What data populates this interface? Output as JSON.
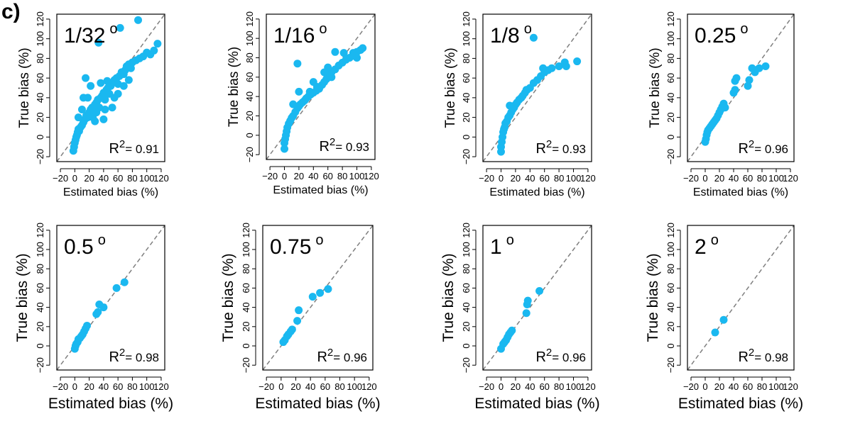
{
  "figure_label": "c)",
  "style": {
    "point_color": "#1ab8f0",
    "diagonal_color": "#7f7f7f"
  },
  "chart_data": [
    {
      "type": "scatter",
      "resolution_label": "1/32",
      "degree_symbol": "o",
      "r2_prefix": "R",
      "r2_sup": "2",
      "r2_value": "= 0.91",
      "xlabel": "Estimated bias (%)",
      "ylabel": "True  bias (%)",
      "xlim": [
        -25,
        125
      ],
      "ylim": [
        -25,
        125
      ],
      "xticks": [
        -20,
        0,
        20,
        40,
        60,
        80,
        100,
        120
      ],
      "yticks": [
        -20,
        0,
        20,
        40,
        60,
        80,
        100,
        120
      ],
      "reference_line": "1:1",
      "points": [
        [
          -2,
          -14
        ],
        [
          -1,
          -10
        ],
        [
          0,
          -6
        ],
        [
          1,
          -3
        ],
        [
          2,
          0
        ],
        [
          3,
          2
        ],
        [
          4,
          5
        ],
        [
          5,
          8
        ],
        [
          6,
          6
        ],
        [
          8,
          10
        ],
        [
          10,
          12
        ],
        [
          12,
          15
        ],
        [
          14,
          18
        ],
        [
          16,
          22
        ],
        [
          18,
          20
        ],
        [
          20,
          25
        ],
        [
          22,
          28
        ],
        [
          24,
          30
        ],
        [
          26,
          26
        ],
        [
          28,
          33
        ],
        [
          30,
          35
        ],
        [
          32,
          38
        ],
        [
          34,
          30
        ],
        [
          36,
          40
        ],
        [
          38,
          42
        ],
        [
          40,
          45
        ],
        [
          42,
          38
        ],
        [
          44,
          48
        ],
        [
          46,
          50
        ],
        [
          48,
          44
        ],
        [
          50,
          52
        ],
        [
          52,
          55
        ],
        [
          55,
          58
        ],
        [
          58,
          60
        ],
        [
          60,
          54
        ],
        [
          62,
          62
        ],
        [
          65,
          66
        ],
        [
          68,
          64
        ],
        [
          70,
          68
        ],
        [
          72,
          72
        ],
        [
          75,
          74
        ],
        [
          78,
          70
        ],
        [
          80,
          76
        ],
        [
          85,
          78
        ],
        [
          90,
          80
        ],
        [
          95,
          82
        ],
        [
          100,
          86
        ],
        [
          105,
          84
        ],
        [
          110,
          88
        ],
        [
          115,
          95
        ],
        [
          33,
          96
        ],
        [
          63,
          111
        ],
        [
          88,
          119
        ],
        [
          15,
          60
        ],
        [
          22,
          52
        ],
        [
          36,
          55
        ],
        [
          45,
          57
        ],
        [
          18,
          40
        ],
        [
          28,
          16
        ],
        [
          40,
          18
        ],
        [
          52,
          30
        ],
        [
          10,
          28
        ],
        [
          12,
          40
        ],
        [
          60,
          44
        ],
        [
          5,
          20
        ],
        [
          25,
          20
        ],
        [
          30,
          25
        ],
        [
          42,
          28
        ],
        [
          55,
          40
        ],
        [
          68,
          52
        ],
        [
          75,
          58
        ]
      ]
    },
    {
      "type": "scatter",
      "resolution_label": "1/16",
      "degree_symbol": "o",
      "r2_prefix": "R",
      "r2_sup": "2",
      "r2_value": "= 0.93",
      "xlabel": "Estimated bias (%)",
      "ylabel": "True  bias (%)",
      "xlim": [
        -25,
        125
      ],
      "ylim": [
        -25,
        125
      ],
      "xticks": [
        -20,
        0,
        20,
        40,
        60,
        80,
        100,
        120
      ],
      "yticks": [
        -20,
        0,
        20,
        40,
        60,
        80,
        100,
        120
      ],
      "reference_line": "1:1",
      "points": [
        [
          0,
          -14
        ],
        [
          0,
          -8
        ],
        [
          1,
          -4
        ],
        [
          2,
          0
        ],
        [
          3,
          4
        ],
        [
          4,
          8
        ],
        [
          6,
          12
        ],
        [
          8,
          15
        ],
        [
          10,
          18
        ],
        [
          12,
          20
        ],
        [
          15,
          24
        ],
        [
          18,
          28
        ],
        [
          20,
          30
        ],
        [
          22,
          32
        ],
        [
          25,
          34
        ],
        [
          28,
          36
        ],
        [
          30,
          38
        ],
        [
          33,
          40
        ],
        [
          36,
          42
        ],
        [
          40,
          44
        ],
        [
          44,
          46
        ],
        [
          48,
          48
        ],
        [
          52,
          52
        ],
        [
          55,
          55
        ],
        [
          58,
          58
        ],
        [
          62,
          62
        ],
        [
          65,
          65
        ],
        [
          70,
          68
        ],
        [
          75,
          72
        ],
        [
          80,
          75
        ],
        [
          85,
          78
        ],
        [
          90,
          80
        ],
        [
          95,
          82
        ],
        [
          100,
          86
        ],
        [
          105,
          88
        ],
        [
          108,
          90
        ],
        [
          18,
          74
        ],
        [
          70,
          86
        ],
        [
          20,
          45
        ],
        [
          35,
          45
        ],
        [
          55,
          65
        ],
        [
          40,
          55
        ],
        [
          60,
          70
        ],
        [
          12,
          32
        ],
        [
          45,
          50
        ],
        [
          65,
          60
        ],
        [
          82,
          85
        ],
        [
          95,
          85
        ],
        [
          100,
          80
        ]
      ]
    },
    {
      "type": "scatter",
      "resolution_label": "1/8",
      "degree_symbol": "o",
      "r2_prefix": "R",
      "r2_sup": "2",
      "r2_value": "= 0.93",
      "xlabel": "Estimated bias (%)",
      "ylabel": "True bias (%)",
      "xlim": [
        -25,
        125
      ],
      "ylim": [
        -25,
        125
      ],
      "xticks": [
        -20,
        0,
        20,
        40,
        60,
        80,
        100,
        120
      ],
      "yticks": [
        -20,
        0,
        20,
        40,
        60,
        80,
        100,
        120
      ],
      "reference_line": "1:1",
      "points": [
        [
          0,
          -15
        ],
        [
          0,
          -10
        ],
        [
          1,
          -5
        ],
        [
          2,
          0
        ],
        [
          3,
          5
        ],
        [
          4,
          8
        ],
        [
          5,
          10
        ],
        [
          6,
          14
        ],
        [
          8,
          16
        ],
        [
          10,
          20
        ],
        [
          12,
          22
        ],
        [
          14,
          25
        ],
        [
          16,
          28
        ],
        [
          18,
          30
        ],
        [
          20,
          33
        ],
        [
          22,
          35
        ],
        [
          25,
          38
        ],
        [
          28,
          40
        ],
        [
          30,
          42
        ],
        [
          33,
          45
        ],
        [
          36,
          48
        ],
        [
          40,
          50
        ],
        [
          45,
          55
        ],
        [
          50,
          58
        ],
        [
          55,
          62
        ],
        [
          60,
          66
        ],
        [
          65,
          68
        ],
        [
          70,
          70
        ],
        [
          80,
          72
        ],
        [
          88,
          76
        ],
        [
          90,
          72
        ],
        [
          105,
          77
        ],
        [
          45,
          101
        ],
        [
          12,
          32
        ],
        [
          35,
          48
        ],
        [
          58,
          70
        ]
      ]
    },
    {
      "type": "scatter",
      "resolution_label": "0.25",
      "degree_symbol": "o",
      "r2_prefix": "R",
      "r2_sup": "2",
      "r2_value": "= 0.96",
      "xlabel": "Estimated bias (%)",
      "ylabel": "True bias (%)",
      "xlim": [
        -25,
        125
      ],
      "ylim": [
        -25,
        125
      ],
      "xticks": [
        -20,
        0,
        20,
        40,
        60,
        80,
        100,
        120
      ],
      "yticks": [
        -20,
        0,
        20,
        40,
        60,
        80,
        100,
        120
      ],
      "reference_line": "1:1",
      "points": [
        [
          0,
          -5
        ],
        [
          1,
          -2
        ],
        [
          2,
          2
        ],
        [
          3,
          5
        ],
        [
          4,
          7
        ],
        [
          6,
          9
        ],
        [
          8,
          11
        ],
        [
          10,
          13
        ],
        [
          12,
          15
        ],
        [
          14,
          17
        ],
        [
          16,
          19
        ],
        [
          18,
          22
        ],
        [
          20,
          25
        ],
        [
          22,
          28
        ],
        [
          24,
          31
        ],
        [
          26,
          34
        ],
        [
          28,
          30
        ],
        [
          40,
          45
        ],
        [
          42,
          48
        ],
        [
          42,
          57
        ],
        [
          44,
          60
        ],
        [
          60,
          52
        ],
        [
          62,
          58
        ],
        [
          66,
          70
        ],
        [
          70,
          66
        ],
        [
          76,
          70
        ],
        [
          85,
          72
        ]
      ]
    },
    {
      "type": "scatter",
      "resolution_label": "0.5",
      "degree_symbol": "o",
      "r2_prefix": "R",
      "r2_sup": "2",
      "r2_value": "= 0.98",
      "xlabel": "Estimated bias (%)",
      "ylabel": "True bias (%)",
      "xlim": [
        -25,
        125
      ],
      "ylim": [
        -25,
        125
      ],
      "xticks": [
        -20,
        0,
        20,
        40,
        60,
        80,
        100,
        120
      ],
      "yticks": [
        -20,
        0,
        20,
        40,
        60,
        80,
        100,
        120
      ],
      "reference_line": "1:1",
      "points": [
        [
          0,
          -3
        ],
        [
          1,
          0
        ],
        [
          2,
          2
        ],
        [
          4,
          4
        ],
        [
          5,
          7
        ],
        [
          7,
          8
        ],
        [
          9,
          10
        ],
        [
          11,
          12
        ],
        [
          13,
          15
        ],
        [
          15,
          18
        ],
        [
          17,
          21
        ],
        [
          30,
          33
        ],
        [
          32,
          35
        ],
        [
          34,
          43
        ],
        [
          40,
          40
        ],
        [
          58,
          60
        ],
        [
          69,
          66
        ]
      ]
    },
    {
      "type": "scatter",
      "resolution_label": "0.75",
      "degree_symbol": "o",
      "r2_prefix": "R",
      "r2_sup": "2",
      "r2_value": "= 0.96",
      "xlabel": "Estimated bias (%)",
      "ylabel": "True bias (%)",
      "xlim": [
        -25,
        125
      ],
      "ylim": [
        -25,
        125
      ],
      "xticks": [
        -20,
        0,
        20,
        40,
        60,
        80,
        100,
        120
      ],
      "yticks": [
        -20,
        0,
        20,
        40,
        60,
        80,
        100,
        120
      ],
      "reference_line": "1:1",
      "points": [
        [
          3,
          4
        ],
        [
          5,
          6
        ],
        [
          8,
          10
        ],
        [
          10,
          12
        ],
        [
          13,
          15
        ],
        [
          15,
          17
        ],
        [
          22,
          26
        ],
        [
          24,
          37
        ],
        [
          43,
          51
        ],
        [
          53,
          55
        ],
        [
          64,
          59
        ]
      ]
    },
    {
      "type": "scatter",
      "resolution_label": "1",
      "degree_symbol": "o",
      "r2_prefix": "R",
      "r2_sup": "2",
      "r2_value": "= 0.96",
      "xlabel": "Estimated bias (%)",
      "ylabel": "True bias (%)",
      "xlim": [
        -25,
        125
      ],
      "ylim": [
        -25,
        125
      ],
      "xticks": [
        -20,
        0,
        20,
        40,
        60,
        80,
        100,
        120
      ],
      "yticks": [
        -20,
        0,
        20,
        40,
        60,
        80,
        100,
        120
      ],
      "reference_line": "1:1",
      "points": [
        [
          0,
          -3
        ],
        [
          3,
          2
        ],
        [
          5,
          4
        ],
        [
          7,
          6
        ],
        [
          9,
          9
        ],
        [
          11,
          12
        ],
        [
          13,
          14
        ],
        [
          15,
          16
        ],
        [
          35,
          34
        ],
        [
          36,
          43
        ],
        [
          37,
          47
        ],
        [
          53,
          57
        ]
      ]
    },
    {
      "type": "scatter",
      "resolution_label": "2",
      "degree_symbol": "o",
      "r2_prefix": "R",
      "r2_sup": "2",
      "r2_value": "= 0.98",
      "xlabel": "Estimated bias (%)",
      "ylabel": "True bias (%)",
      "xlim": [
        -25,
        125
      ],
      "ylim": [
        -25,
        125
      ],
      "xticks": [
        -20,
        0,
        20,
        40,
        60,
        80,
        100,
        120
      ],
      "yticks": [
        -20,
        0,
        20,
        40,
        60,
        80,
        100,
        120
      ],
      "reference_line": "1:1",
      "points": [
        [
          14,
          14
        ],
        [
          26,
          27
        ]
      ]
    }
  ]
}
